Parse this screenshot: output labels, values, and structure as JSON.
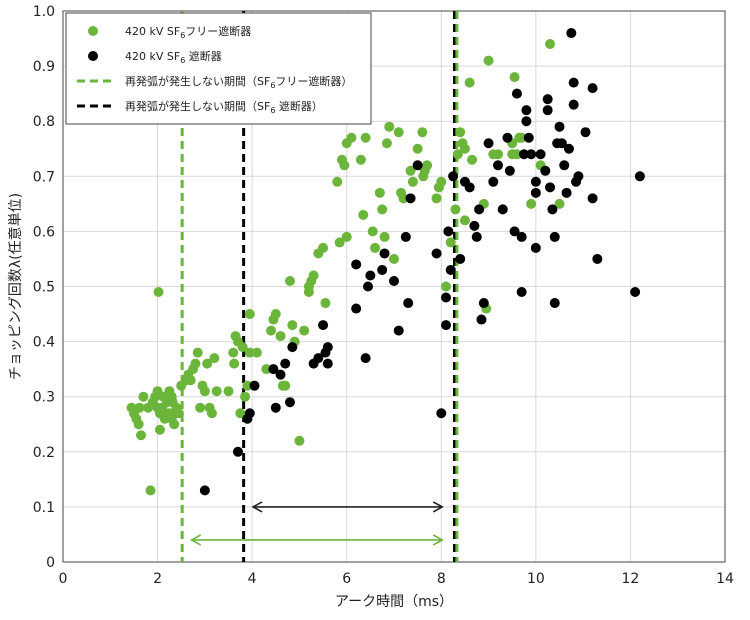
{
  "chart_data": {
    "type": "scatter",
    "xlabel": "アーク時間（ms）",
    "ylabel": "チョッピング回数λ(任意単位)",
    "xlim": [
      0,
      14
    ],
    "ylim": [
      0,
      1.0
    ],
    "x_ticks": [
      0,
      2,
      4,
      6,
      8,
      10,
      12,
      14
    ],
    "y_ticks": [
      0,
      0.1,
      0.2,
      0.3,
      0.4,
      0.5,
      0.6,
      0.7,
      0.8,
      0.9,
      1.0
    ],
    "x_tick_labels": [
      "0",
      "2",
      "4",
      "6",
      "8",
      "10",
      "12",
      "14"
    ],
    "y_tick_labels": [
      "0",
      "0.1",
      "0.2",
      "0.3",
      "0.4",
      "0.5",
      "0.6",
      "0.7",
      "0.8",
      "0.9",
      "1.0"
    ],
    "grid": true,
    "legend_placement": "top-left",
    "colors": {
      "green": "#6ab53a",
      "black": "#000000",
      "arrow_black": "#222222",
      "grid": "#d9d9d9"
    },
    "legend": [
      {
        "kind": "marker",
        "color": "#6ab53a",
        "label_pre": "420 kV SF",
        "label_sub": "6",
        "label_post": "フリー遮断器"
      },
      {
        "kind": "marker",
        "color": "#000000",
        "label_pre": "420 kV SF",
        "label_sub": "6",
        "label_post": " 遮断器"
      },
      {
        "kind": "line",
        "color": "#6ab53a",
        "label_pre": "再発弧が発生しない期間（SF",
        "label_sub": "6",
        "label_post": "フリー遮断器）"
      },
      {
        "kind": "line",
        "color": "#000000",
        "label_pre": "再発弧が発生しない期間（SF",
        "label_sub": "6",
        "label_post": " 遮断器）"
      }
    ],
    "vlines": [
      {
        "x": 2.52,
        "color": "#6ab53a"
      },
      {
        "x": 3.82,
        "color": "#000000"
      },
      {
        "x": 8.28,
        "color": "#000000"
      },
      {
        "x": 8.33,
        "color": "#6ab53a"
      }
    ],
    "arrows": [
      {
        "x1": 4.02,
        "x2": 8.02,
        "y": 0.1,
        "color": "#222222"
      },
      {
        "x1": 2.72,
        "x2": 8.02,
        "y": 0.04,
        "color": "#6ab53a"
      }
    ],
    "series": [
      {
        "color": "#6ab53a",
        "points": [
          [
            1.45,
            0.28
          ],
          [
            1.5,
            0.27
          ],
          [
            1.55,
            0.26
          ],
          [
            1.6,
            0.25
          ],
          [
            1.62,
            0.28
          ],
          [
            1.65,
            0.23
          ],
          [
            1.7,
            0.3
          ],
          [
            1.8,
            0.28
          ],
          [
            1.85,
            0.13
          ],
          [
            1.9,
            0.29
          ],
          [
            1.95,
            0.3
          ],
          [
            2.0,
            0.28
          ],
          [
            2.0,
            0.31
          ],
          [
            2.02,
            0.49
          ],
          [
            2.05,
            0.27
          ],
          [
            2.05,
            0.24
          ],
          [
            2.1,
            0.28
          ],
          [
            2.12,
            0.3
          ],
          [
            2.15,
            0.26
          ],
          [
            2.2,
            0.29
          ],
          [
            2.25,
            0.27
          ],
          [
            2.25,
            0.31
          ],
          [
            2.3,
            0.3
          ],
          [
            2.3,
            0.26
          ],
          [
            2.32,
            0.29
          ],
          [
            2.35,
            0.27
          ],
          [
            2.35,
            0.25
          ],
          [
            2.4,
            0.28
          ],
          [
            2.45,
            0.27
          ],
          [
            2.5,
            0.32
          ],
          [
            2.6,
            0.33
          ],
          [
            2.65,
            0.34
          ],
          [
            2.7,
            0.33
          ],
          [
            2.75,
            0.35
          ],
          [
            2.8,
            0.36
          ],
          [
            2.85,
            0.38
          ],
          [
            2.9,
            0.28
          ],
          [
            2.95,
            0.32
          ],
          [
            3.0,
            0.31
          ],
          [
            3.05,
            0.36
          ],
          [
            3.1,
            0.28
          ],
          [
            3.15,
            0.27
          ],
          [
            3.2,
            0.37
          ],
          [
            3.25,
            0.31
          ],
          [
            3.5,
            0.31
          ],
          [
            3.6,
            0.38
          ],
          [
            3.62,
            0.36
          ],
          [
            3.65,
            0.41
          ],
          [
            3.7,
            0.4
          ],
          [
            3.75,
            0.27
          ],
          [
            3.8,
            0.39
          ],
          [
            3.85,
            0.3
          ],
          [
            3.9,
            0.32
          ],
          [
            3.95,
            0.38
          ],
          [
            3.95,
            0.45
          ],
          [
            4.1,
            0.38
          ],
          [
            4.3,
            0.35
          ],
          [
            4.4,
            0.42
          ],
          [
            4.45,
            0.44
          ],
          [
            4.5,
            0.45
          ],
          [
            4.6,
            0.41
          ],
          [
            4.65,
            0.32
          ],
          [
            4.7,
            0.32
          ],
          [
            4.8,
            0.51
          ],
          [
            4.85,
            0.43
          ],
          [
            4.9,
            0.4
          ],
          [
            5.0,
            0.22
          ],
          [
            5.1,
            0.42
          ],
          [
            5.2,
            0.5
          ],
          [
            5.2,
            0.49
          ],
          [
            5.25,
            0.51
          ],
          [
            5.3,
            0.52
          ],
          [
            5.4,
            0.56
          ],
          [
            5.5,
            0.57
          ],
          [
            5.55,
            0.47
          ],
          [
            5.8,
            0.69
          ],
          [
            5.85,
            0.58
          ],
          [
            5.9,
            0.73
          ],
          [
            5.95,
            0.72
          ],
          [
            6.0,
            0.76
          ],
          [
            6.0,
            0.59
          ],
          [
            6.1,
            0.77
          ],
          [
            6.3,
            0.73
          ],
          [
            6.35,
            0.63
          ],
          [
            6.4,
            0.77
          ],
          [
            6.55,
            0.6
          ],
          [
            6.6,
            0.57
          ],
          [
            6.7,
            0.67
          ],
          [
            6.75,
            0.64
          ],
          [
            6.8,
            0.59
          ],
          [
            6.85,
            0.76
          ],
          [
            6.9,
            0.79
          ],
          [
            7.0,
            0.55
          ],
          [
            7.1,
            0.78
          ],
          [
            7.15,
            0.67
          ],
          [
            7.2,
            0.66
          ],
          [
            7.35,
            0.71
          ],
          [
            7.4,
            0.69
          ],
          [
            7.5,
            0.75
          ],
          [
            7.6,
            0.78
          ],
          [
            7.62,
            0.7
          ],
          [
            7.65,
            0.71
          ],
          [
            7.7,
            0.72
          ],
          [
            7.9,
            0.66
          ],
          [
            7.95,
            0.68
          ],
          [
            8.0,
            0.69
          ],
          [
            8.1,
            0.5
          ],
          [
            8.2,
            0.58
          ],
          [
            8.3,
            0.64
          ],
          [
            8.35,
            0.74
          ],
          [
            8.4,
            0.78
          ],
          [
            8.45,
            0.76
          ],
          [
            8.5,
            0.75
          ],
          [
            8.5,
            0.62
          ],
          [
            8.6,
            0.87
          ],
          [
            8.65,
            0.73
          ],
          [
            8.9,
            0.65
          ],
          [
            8.95,
            0.46
          ],
          [
            9.0,
            0.91
          ],
          [
            9.1,
            0.74
          ],
          [
            9.2,
            0.74
          ],
          [
            9.3,
            0.64
          ],
          [
            9.5,
            0.76
          ],
          [
            9.5,
            0.74
          ],
          [
            9.55,
            0.88
          ],
          [
            9.6,
            0.85
          ],
          [
            9.6,
            0.74
          ],
          [
            9.65,
            0.77
          ],
          [
            9.7,
            0.77
          ],
          [
            9.9,
            0.65
          ],
          [
            10.1,
            0.72
          ],
          [
            10.3,
            0.94
          ],
          [
            10.5,
            0.65
          ]
        ]
      },
      {
        "color": "#000000",
        "points": [
          [
            3.0,
            0.13
          ],
          [
            3.7,
            0.2
          ],
          [
            3.9,
            0.26
          ],
          [
            3.95,
            0.27
          ],
          [
            4.05,
            0.32
          ],
          [
            4.45,
            0.35
          ],
          [
            4.5,
            0.28
          ],
          [
            4.6,
            0.34
          ],
          [
            4.7,
            0.36
          ],
          [
            4.8,
            0.29
          ],
          [
            4.85,
            0.39
          ],
          [
            5.3,
            0.36
          ],
          [
            5.4,
            0.37
          ],
          [
            5.5,
            0.43
          ],
          [
            5.55,
            0.38
          ],
          [
            5.6,
            0.36
          ],
          [
            5.6,
            0.39
          ],
          [
            6.2,
            0.46
          ],
          [
            6.2,
            0.54
          ],
          [
            6.4,
            0.37
          ],
          [
            6.45,
            0.5
          ],
          [
            6.5,
            0.52
          ],
          [
            6.75,
            0.53
          ],
          [
            6.8,
            0.56
          ],
          [
            7.0,
            0.51
          ],
          [
            7.1,
            0.42
          ],
          [
            7.3,
            0.47
          ],
          [
            7.25,
            0.59
          ],
          [
            7.35,
            0.66
          ],
          [
            7.5,
            0.72
          ],
          [
            7.9,
            0.56
          ],
          [
            8.0,
            0.27
          ],
          [
            8.1,
            0.48
          ],
          [
            8.1,
            0.43
          ],
          [
            8.15,
            0.6
          ],
          [
            8.2,
            0.53
          ],
          [
            8.25,
            0.7
          ],
          [
            8.4,
            0.55
          ],
          [
            8.5,
            0.69
          ],
          [
            8.6,
            0.68
          ],
          [
            8.7,
            0.61
          ],
          [
            8.75,
            0.59
          ],
          [
            8.8,
            0.64
          ],
          [
            8.85,
            0.44
          ],
          [
            8.9,
            0.47
          ],
          [
            9.0,
            0.76
          ],
          [
            9.1,
            0.69
          ],
          [
            9.2,
            0.72
          ],
          [
            9.3,
            0.64
          ],
          [
            9.4,
            0.77
          ],
          [
            9.45,
            0.71
          ],
          [
            9.55,
            0.6
          ],
          [
            9.6,
            0.85
          ],
          [
            9.7,
            0.49
          ],
          [
            9.7,
            0.59
          ],
          [
            9.75,
            0.74
          ],
          [
            9.8,
            0.82
          ],
          [
            9.8,
            0.8
          ],
          [
            9.85,
            0.77
          ],
          [
            9.9,
            0.74
          ],
          [
            10.0,
            0.57
          ],
          [
            10.0,
            0.69
          ],
          [
            10.0,
            0.67
          ],
          [
            10.1,
            0.74
          ],
          [
            10.2,
            0.71
          ],
          [
            10.25,
            0.84
          ],
          [
            10.25,
            0.82
          ],
          [
            10.3,
            0.68
          ],
          [
            10.35,
            0.64
          ],
          [
            10.4,
            0.59
          ],
          [
            10.4,
            0.47
          ],
          [
            10.45,
            0.76
          ],
          [
            10.5,
            0.79
          ],
          [
            10.55,
            0.76
          ],
          [
            10.6,
            0.72
          ],
          [
            10.65,
            0.67
          ],
          [
            10.7,
            0.75
          ],
          [
            10.75,
            0.96
          ],
          [
            10.8,
            0.83
          ],
          [
            10.8,
            0.87
          ],
          [
            10.85,
            0.69
          ],
          [
            10.9,
            0.7
          ],
          [
            11.05,
            0.78
          ],
          [
            11.2,
            0.66
          ],
          [
            11.2,
            0.86
          ],
          [
            11.3,
            0.55
          ],
          [
            12.1,
            0.49
          ],
          [
            12.2,
            0.7
          ]
        ]
      }
    ]
  }
}
